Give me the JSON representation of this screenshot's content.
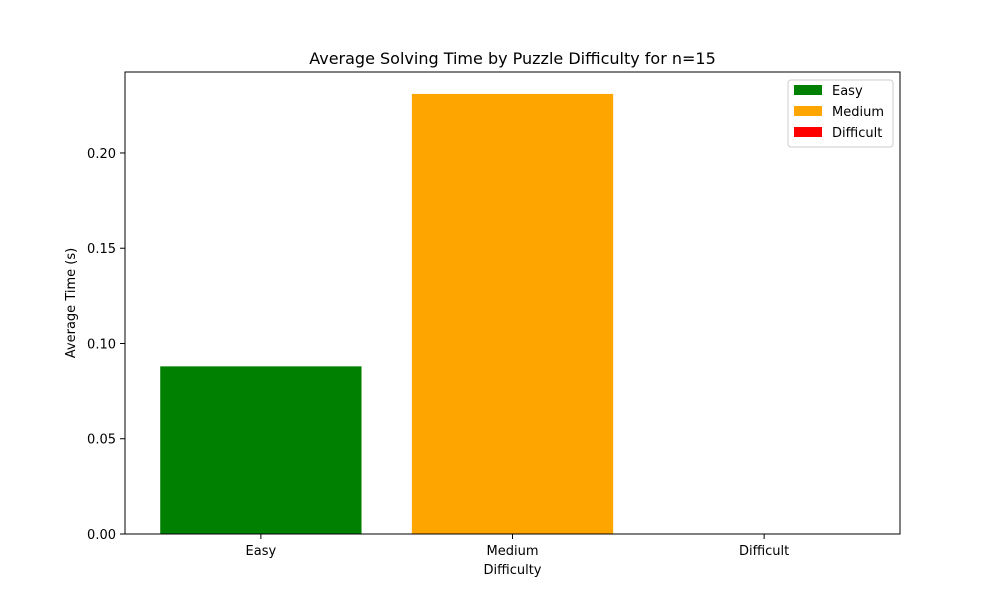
{
  "chart_data": {
    "type": "bar",
    "title": "Average Solving Time by Puzzle Difficulty for n=15",
    "xlabel": "Difficulty",
    "ylabel": "Average Time (s)",
    "categories": [
      "Easy",
      "Medium",
      "Difficult"
    ],
    "values": [
      0.088,
      0.231,
      0.0
    ],
    "colors": [
      "#008000",
      "#ffa500",
      "#ff0000"
    ],
    "ylim": [
      0,
      0.2425
    ],
    "yticks": [
      0.0,
      0.05,
      0.1,
      0.15,
      0.2
    ],
    "ytick_labels": [
      "0.00",
      "0.05",
      "0.10",
      "0.15",
      "0.20"
    ],
    "grid": false,
    "legend": {
      "placement": "top-right",
      "entries": [
        "Easy",
        "Medium",
        "Difficult"
      ]
    }
  }
}
